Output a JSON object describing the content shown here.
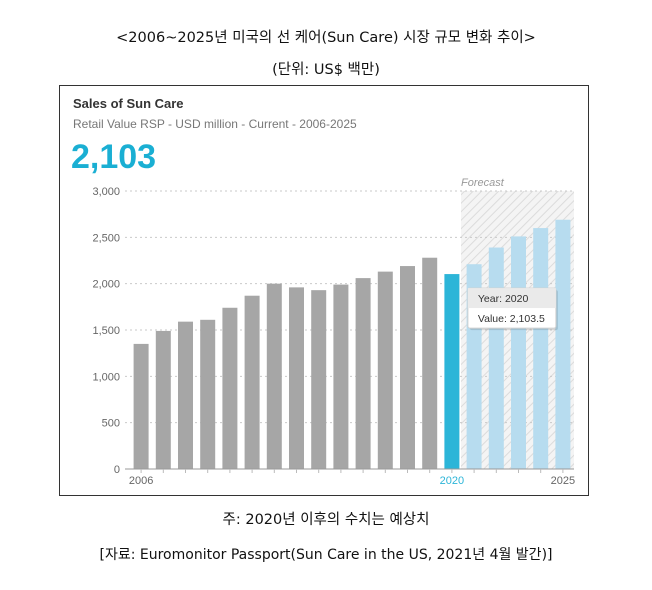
{
  "page": {
    "title": "<2006~2025년 미국의 선 케어(Sun Care) 시장 규모 변화 추이>",
    "unit": "(단위: US$ 백만)",
    "note": "주: 2020년 이후의 수치는 예상치",
    "source": "[자료: Euromonitor Passport(Sun Care in the US, 2021년 4월 발간)]"
  },
  "chart_data": {
    "type": "bar",
    "title": "Sales of Sun Care",
    "subtitle": "Retail Value RSP - USD million - Current - 2006-2025",
    "headline_value": "2,103",
    "forecast_label": "Forecast",
    "x": [
      2006,
      2007,
      2008,
      2009,
      2010,
      2011,
      2012,
      2013,
      2014,
      2015,
      2016,
      2017,
      2018,
      2019,
      2020,
      2021,
      2022,
      2023,
      2024,
      2025
    ],
    "values": [
      1350,
      1490,
      1590,
      1610,
      1740,
      1870,
      2000,
      1960,
      1930,
      1990,
      2060,
      2130,
      2190,
      2280,
      2103.5,
      2210,
      2390,
      2510,
      2600,
      2690
    ],
    "highlight_year": 2020,
    "forecast_from": 2021,
    "y_ticks": [
      "0",
      "500",
      "1,000",
      "1,500",
      "2,000",
      "2,500",
      "3,000"
    ],
    "x_tick_labels": [
      "2006",
      "2020",
      "2025"
    ],
    "ylim": [
      0,
      3000
    ],
    "grid": true,
    "colors": {
      "historical": "#a6a6a6",
      "highlight": "#2cb5d8",
      "forecast": "#b7dcef",
      "headline": "#1aafd3",
      "forecast_shade": "#e4e4e4"
    },
    "tooltip": {
      "year_label": "Year: 2020",
      "value_label": "Value: 2,103.5"
    }
  }
}
